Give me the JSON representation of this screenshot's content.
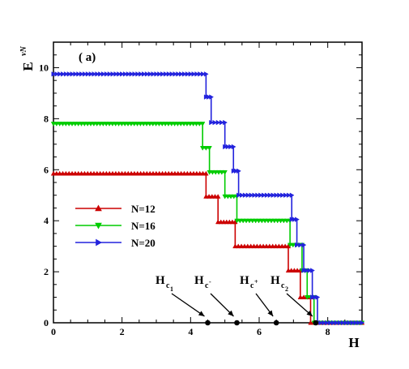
{
  "chart_data": {
    "type": "line",
    "panel_label": "( a)",
    "xlabel": "H",
    "ylabel": "E",
    "ylabel_superscript": "vN",
    "xlim": [
      0,
      9
    ],
    "ylim": [
      0,
      11
    ],
    "xticks": [
      0,
      2,
      4,
      6,
      8
    ],
    "yticks": [
      0,
      2,
      4,
      6,
      8,
      10
    ],
    "grid": false,
    "legend_position": "center-left",
    "series": [
      {
        "name": "N=12",
        "color": "#cc0000",
        "marker": "triangle-up",
        "points": [
          [
            0,
            5.85
          ],
          [
            4.45,
            5.85
          ],
          [
            4.45,
            4.95
          ],
          [
            4.8,
            4.95
          ],
          [
            4.8,
            3.95
          ],
          [
            5.3,
            3.95
          ],
          [
            5.3,
            3.0
          ],
          [
            6.85,
            3.0
          ],
          [
            6.85,
            2.05
          ],
          [
            7.2,
            2.05
          ],
          [
            7.2,
            1.0
          ],
          [
            7.5,
            1.0
          ],
          [
            7.5,
            0
          ],
          [
            9,
            0
          ]
        ]
      },
      {
        "name": "N=16",
        "color": "#00cc00",
        "marker": "triangle-down",
        "points": [
          [
            0,
            7.8
          ],
          [
            4.35,
            7.8
          ],
          [
            4.35,
            6.85
          ],
          [
            4.55,
            6.85
          ],
          [
            4.55,
            5.9
          ],
          [
            5.0,
            5.9
          ],
          [
            5.0,
            4.95
          ],
          [
            5.35,
            4.95
          ],
          [
            5.35,
            4.0
          ],
          [
            6.9,
            4.0
          ],
          [
            6.9,
            3.05
          ],
          [
            7.25,
            3.05
          ],
          [
            7.25,
            2.05
          ],
          [
            7.4,
            2.05
          ],
          [
            7.4,
            1.0
          ],
          [
            7.6,
            1.0
          ],
          [
            7.6,
            0
          ],
          [
            9,
            0
          ]
        ]
      },
      {
        "name": "N=20",
        "color": "#2222dd",
        "marker": "triangle-right",
        "points": [
          [
            0,
            9.75
          ],
          [
            4.45,
            9.75
          ],
          [
            4.45,
            8.85
          ],
          [
            4.6,
            8.85
          ],
          [
            4.6,
            7.85
          ],
          [
            5.0,
            7.85
          ],
          [
            5.0,
            6.9
          ],
          [
            5.25,
            6.9
          ],
          [
            5.25,
            5.95
          ],
          [
            5.4,
            5.95
          ],
          [
            5.4,
            5.0
          ],
          [
            6.95,
            5.0
          ],
          [
            6.95,
            4.05
          ],
          [
            7.1,
            4.05
          ],
          [
            7.1,
            3.05
          ],
          [
            7.3,
            3.05
          ],
          [
            7.3,
            2.05
          ],
          [
            7.55,
            2.05
          ],
          [
            7.55,
            1.0
          ],
          [
            7.7,
            1.0
          ],
          [
            7.7,
            0
          ],
          [
            9,
            0
          ]
        ]
      }
    ],
    "critical_points": [
      {
        "label": "H",
        "sub": "c",
        "subsub": "1",
        "x": 4.5
      },
      {
        "label": "H",
        "sub": "c",
        "subsub": "-",
        "x": 5.35
      },
      {
        "label": "H",
        "sub": "c",
        "subsub": "+",
        "x": 6.5
      },
      {
        "label": "H",
        "sub": "c",
        "subsub": "2",
        "x": 7.65
      }
    ]
  }
}
